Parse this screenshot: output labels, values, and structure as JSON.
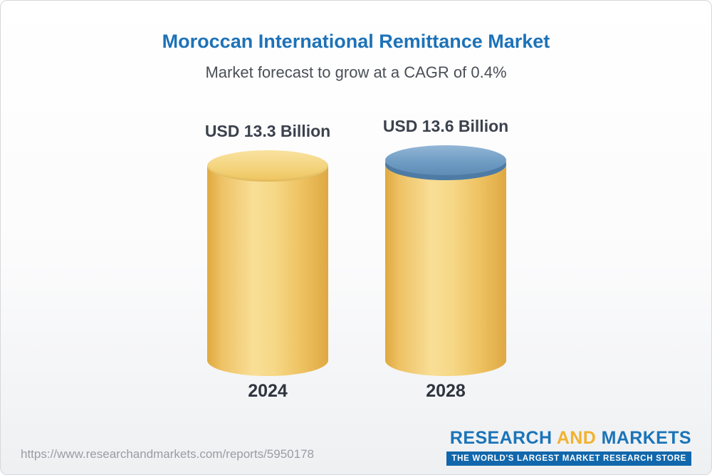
{
  "page": {
    "title": "Moroccan International Remittance Market",
    "subtitle": "Market forecast to grow at a CAGR of 0.4%",
    "footer_url": "https://www.researchandmarkets.com/reports/5950178",
    "logo": {
      "word_research": "RESEARCH",
      "word_and": "AND",
      "word_markets": "MARKETS",
      "tagline": "THE WORLD'S LARGEST MARKET RESEARCH STORE"
    }
  },
  "chart_data": {
    "type": "bar",
    "bar_style": "3d-cylinder",
    "title": "Moroccan International Remittance Market",
    "subtitle": "Market forecast to grow at a CAGR of 0.4%",
    "cagr": "0.4%",
    "unit": "USD Billion",
    "categories": [
      "2024",
      "2028"
    ],
    "values": [
      13.3,
      13.6
    ],
    "labels": [
      "USD 13.3 Billion",
      "USD 13.6 Billion"
    ],
    "ylim": [
      0,
      14
    ],
    "grid": false,
    "legend": false,
    "colors": {
      "cylinder_body": "#f2c96a",
      "cylinder_light": "#f8de96",
      "cylinder_dark": "#dfa93f",
      "cap_2024": "#f3d279",
      "cap_2028": "#6f9cc3",
      "cap_2028_rim": "#4d7ba5",
      "title_text": "#1d72b8",
      "label_text": "#3b424d",
      "logo_blue": "#1b74b8",
      "logo_yellow": "#f2b230"
    }
  }
}
